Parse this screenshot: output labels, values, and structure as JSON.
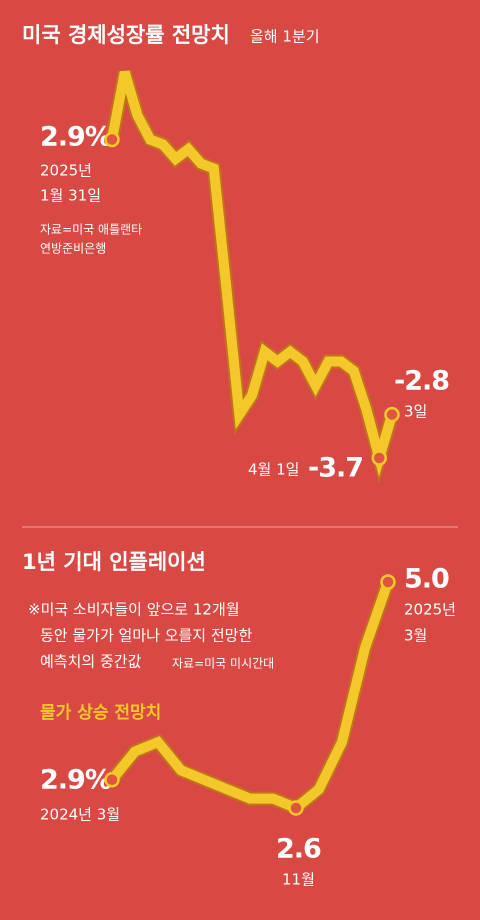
{
  "charts": [
    {
      "chart_data": {
        "type": "line",
        "title": "미국 경제성장률 전망치",
        "subtitle": "올해 1분기",
        "source_lines": [
          "자료=미국 애틀랜타",
          "연방준비은행"
        ],
        "start_year": "2025년",
        "categories": [
          "1월 31일",
          null,
          null,
          null,
          null,
          null,
          null,
          null,
          null,
          null,
          null,
          null,
          null,
          null,
          null,
          null,
          null,
          null,
          null,
          null,
          null,
          "4월 1일",
          "3일"
        ],
        "series": [
          {
            "name": "미국 경제성장률 전망치",
            "color": "#f4c72a",
            "values": [
              2.9,
              4.3,
              3.4,
              2.9,
              2.8,
              2.5,
              2.7,
              2.4,
              2.3,
              -0.2,
              -2.8,
              -2.4,
              -1.5,
              -1.7,
              -1.5,
              -1.7,
              -2.2,
              -1.7,
              -1.7,
              -1.9,
              -2.7,
              -3.7,
              -2.8
            ],
            "value_labels": [
              "2.9%",
              null,
              null,
              null,
              null,
              null,
              null,
              null,
              null,
              null,
              null,
              null,
              null,
              null,
              null,
              null,
              null,
              null,
              null,
              null,
              null,
              "-3.7",
              "-2.8"
            ]
          }
        ]
      }
    },
    {
      "chart_data": {
        "type": "line",
        "title": "1년 기대 인플레이션",
        "note_lines": [
          "※미국 소비자들이 앞으로 12개월",
          "동안 물가가 얼마나 오를지 전망한",
          "예측치의 중간값"
        ],
        "source": "자료=미국 미시간대",
        "end_year": "2025년",
        "categories": [
          "2024년 3월",
          null,
          null,
          null,
          null,
          null,
          null,
          null,
          "11월",
          null,
          null,
          null,
          "3월"
        ],
        "series": [
          {
            "name": "물가 상승 전망치",
            "color": "#f4c72a",
            "values": [
              2.9,
              3.2,
              3.3,
              3.0,
              2.9,
              2.8,
              2.7,
              2.7,
              2.6,
              2.8,
              3.3,
              4.3,
              5.0
            ],
            "value_labels": [
              "2.9%",
              null,
              null,
              null,
              null,
              null,
              null,
              null,
              "2.6",
              null,
              null,
              null,
              "5.0"
            ]
          }
        ]
      }
    }
  ]
}
